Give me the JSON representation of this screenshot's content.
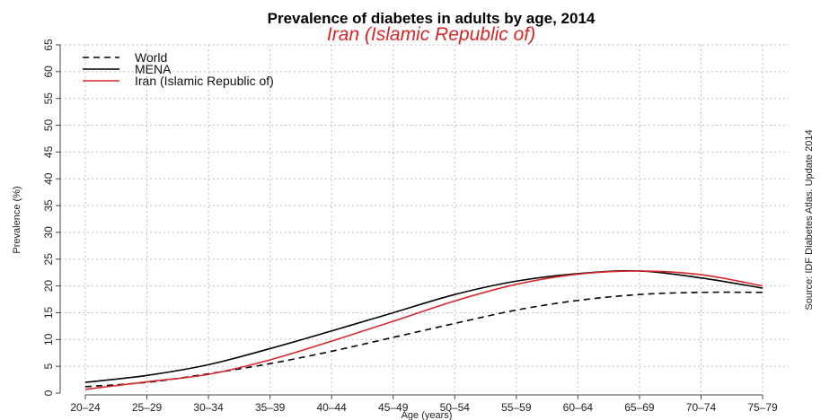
{
  "chart_data": {
    "type": "line",
    "title": "Prevalence of diabetes in adults by age, 2014",
    "subtitle": "Iran (Islamic Republic of)",
    "xlabel": "Age (years)",
    "ylabel": "Prevalence (%)",
    "source": "Source: IDF Diabetes Atlas. Update 2014",
    "categories": [
      "20–24",
      "25–29",
      "30–34",
      "35–39",
      "40–44",
      "45–49",
      "50–54",
      "55–59",
      "60–64",
      "65–69",
      "70–74",
      "75–79"
    ],
    "ylim": [
      0,
      65
    ],
    "yticks": [
      0,
      5,
      10,
      15,
      20,
      25,
      30,
      35,
      40,
      45,
      50,
      55,
      60,
      65
    ],
    "grid": true,
    "legend_position": "top-left",
    "series": [
      {
        "name": "World",
        "style": "dashed",
        "color": "#000000",
        "values": [
          1.2,
          2.0,
          3.6,
          5.5,
          7.8,
          10.4,
          13.0,
          15.5,
          17.3,
          18.4,
          18.8,
          18.8
        ]
      },
      {
        "name": "MENA",
        "style": "solid",
        "color": "#000000",
        "values": [
          2.0,
          3.3,
          5.3,
          8.3,
          11.6,
          15.0,
          18.4,
          20.9,
          22.3,
          22.8,
          21.5,
          19.6
        ]
      },
      {
        "name": "Iran (Islamic Republic of)",
        "style": "solid",
        "color": "#d62728",
        "values": [
          0.7,
          2.1,
          3.5,
          6.2,
          9.7,
          13.4,
          17.2,
          20.3,
          22.2,
          22.8,
          22.1,
          20.0
        ]
      }
    ]
  }
}
